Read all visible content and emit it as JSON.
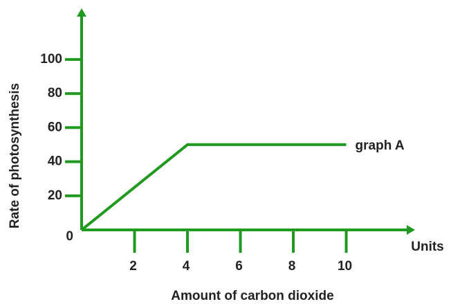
{
  "chart_data": {
    "type": "line",
    "xlabel": "Amount of carbon dioxide",
    "ylabel": "Rate of photosynthesis",
    "x_unit": "Units",
    "x": [
      0,
      4,
      10
    ],
    "series": [
      {
        "name": "graph A",
        "color": "#1f9a1f",
        "values": [
          0,
          50,
          50
        ]
      }
    ],
    "xlim": [
      0,
      12.6
    ],
    "xticks": [
      2,
      4,
      6,
      8,
      10
    ],
    "ylim": [
      0,
      130
    ],
    "yticks": [
      0,
      20,
      40,
      60,
      80,
      100
    ],
    "axis_color": "#1f9a1f"
  }
}
